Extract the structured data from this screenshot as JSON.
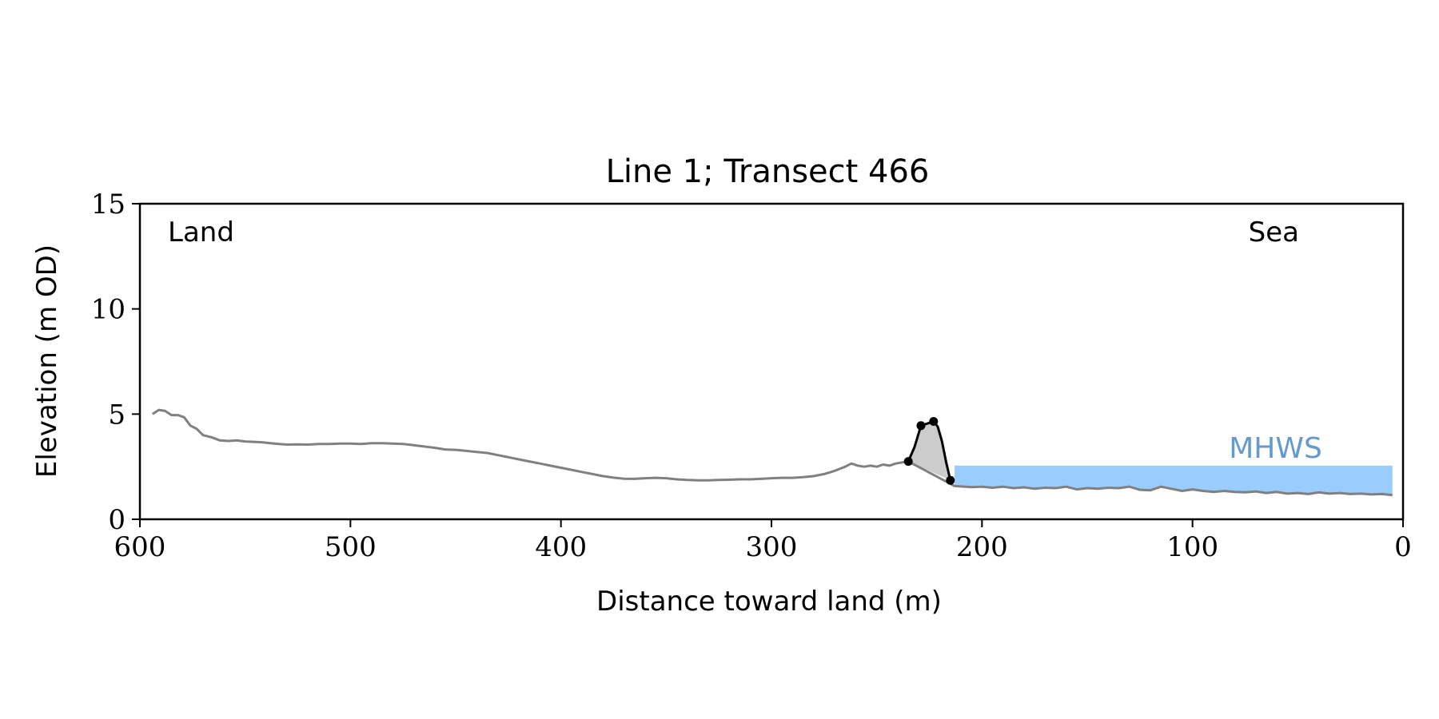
{
  "chart_data": {
    "type": "line",
    "title": "Line 1; Transect 466",
    "xlabel": "Distance toward land (m)",
    "ylabel": "Elevation (m OD)",
    "xlim": [
      600,
      0
    ],
    "ylim": [
      0,
      15
    ],
    "x_reversed": true,
    "x_ticks": [
      600,
      500,
      400,
      300,
      200,
      100,
      0
    ],
    "y_ticks": [
      0,
      5,
      10,
      15
    ],
    "grid": false,
    "annotations": {
      "land": "Land",
      "sea": "Sea",
      "mhws": "MHWS"
    },
    "mhws_level": 2.55,
    "mhws_x_range": [
      213,
      5
    ],
    "colors": {
      "profile": "#808080",
      "dune": "#000000",
      "dune_fill": "#cccccc",
      "mhws_fill": "#99ccff",
      "mhws_text": "#6699cc"
    },
    "profile": {
      "x": [
        594,
        591,
        588,
        585,
        582,
        579,
        576,
        573,
        570,
        566,
        562,
        558,
        554,
        550,
        546,
        542,
        538,
        534,
        530,
        525,
        520,
        515,
        510,
        505,
        500,
        495,
        490,
        485,
        480,
        475,
        470,
        465,
        460,
        455,
        450,
        445,
        440,
        435,
        430,
        425,
        420,
        415,
        410,
        405,
        400,
        395,
        390,
        385,
        380,
        375,
        370,
        365,
        360,
        355,
        350,
        345,
        340,
        335,
        330,
        325,
        320,
        315,
        310,
        305,
        300,
        295,
        290,
        285,
        280,
        275,
        270,
        265,
        262,
        259,
        256,
        253,
        250,
        247,
        244,
        241,
        238,
        235,
        213,
        210,
        205,
        200,
        195,
        190,
        185,
        180,
        175,
        170,
        165,
        160,
        155,
        150,
        145,
        140,
        135,
        130,
        125,
        120,
        115,
        110,
        105,
        100,
        95,
        90,
        85,
        80,
        75,
        70,
        65,
        60,
        55,
        50,
        45,
        40,
        35,
        30,
        25,
        20,
        15,
        10,
        5
      ],
      "y": [
        5.0,
        5.2,
        5.15,
        4.95,
        4.95,
        4.85,
        4.45,
        4.3,
        4.0,
        3.9,
        3.75,
        3.72,
        3.75,
        3.7,
        3.68,
        3.66,
        3.62,
        3.58,
        3.55,
        3.56,
        3.55,
        3.58,
        3.58,
        3.6,
        3.6,
        3.58,
        3.62,
        3.62,
        3.6,
        3.58,
        3.52,
        3.46,
        3.4,
        3.32,
        3.3,
        3.25,
        3.2,
        3.15,
        3.05,
        2.95,
        2.85,
        2.75,
        2.65,
        2.55,
        2.45,
        2.35,
        2.25,
        2.15,
        2.05,
        1.98,
        1.93,
        1.92,
        1.95,
        1.97,
        1.95,
        1.9,
        1.87,
        1.85,
        1.85,
        1.87,
        1.88,
        1.9,
        1.9,
        1.92,
        1.95,
        1.97,
        1.97,
        2.0,
        2.05,
        2.15,
        2.3,
        2.5,
        2.65,
        2.55,
        2.5,
        2.55,
        2.5,
        2.6,
        2.55,
        2.65,
        2.7,
        2.75,
        1.58,
        1.56,
        1.53,
        1.55,
        1.5,
        1.55,
        1.48,
        1.52,
        1.45,
        1.5,
        1.48,
        1.55,
        1.42,
        1.48,
        1.45,
        1.5,
        1.48,
        1.55,
        1.4,
        1.38,
        1.55,
        1.45,
        1.35,
        1.42,
        1.35,
        1.3,
        1.35,
        1.3,
        1.28,
        1.32,
        1.25,
        1.3,
        1.22,
        1.25,
        1.2,
        1.28,
        1.22,
        1.25,
        1.2,
        1.22,
        1.18,
        1.2,
        1.15
      ]
    },
    "dune": {
      "x": [
        235,
        232,
        229,
        226,
        223,
        221,
        219,
        217,
        215
      ],
      "y": [
        2.75,
        3.45,
        4.45,
        4.55,
        4.65,
        4.4,
        3.7,
        2.7,
        1.85
      ]
    },
    "dune_markers": [
      {
        "x": 235,
        "y": 2.75
      },
      {
        "x": 229,
        "y": 4.45
      },
      {
        "x": 223,
        "y": 4.65
      },
      {
        "x": 215,
        "y": 1.85
      }
    ]
  }
}
